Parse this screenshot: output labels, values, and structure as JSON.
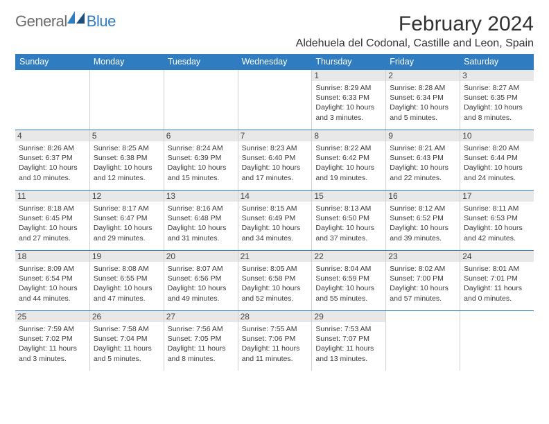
{
  "logo": {
    "general": "General",
    "blue": "Blue"
  },
  "title": "February 2024",
  "location": "Aldehuela del Codonal, Castille and Leon, Spain",
  "colors": {
    "header_bar": "#2f7dc0",
    "header_text": "#ffffff",
    "daynum_bg": "#e8e8e8",
    "text": "#3a3a3a",
    "rule": "#2f7dc0"
  },
  "weekdays": [
    "Sunday",
    "Monday",
    "Tuesday",
    "Wednesday",
    "Thursday",
    "Friday",
    "Saturday"
  ],
  "first_weekday_index": 4,
  "days": [
    {
      "n": 1,
      "sunrise": "8:29 AM",
      "sunset": "6:33 PM",
      "daylight": "10 hours and 3 minutes."
    },
    {
      "n": 2,
      "sunrise": "8:28 AM",
      "sunset": "6:34 PM",
      "daylight": "10 hours and 5 minutes."
    },
    {
      "n": 3,
      "sunrise": "8:27 AM",
      "sunset": "6:35 PM",
      "daylight": "10 hours and 8 minutes."
    },
    {
      "n": 4,
      "sunrise": "8:26 AM",
      "sunset": "6:37 PM",
      "daylight": "10 hours and 10 minutes."
    },
    {
      "n": 5,
      "sunrise": "8:25 AM",
      "sunset": "6:38 PM",
      "daylight": "10 hours and 12 minutes."
    },
    {
      "n": 6,
      "sunrise": "8:24 AM",
      "sunset": "6:39 PM",
      "daylight": "10 hours and 15 minutes."
    },
    {
      "n": 7,
      "sunrise": "8:23 AM",
      "sunset": "6:40 PM",
      "daylight": "10 hours and 17 minutes."
    },
    {
      "n": 8,
      "sunrise": "8:22 AM",
      "sunset": "6:42 PM",
      "daylight": "10 hours and 19 minutes."
    },
    {
      "n": 9,
      "sunrise": "8:21 AM",
      "sunset": "6:43 PM",
      "daylight": "10 hours and 22 minutes."
    },
    {
      "n": 10,
      "sunrise": "8:20 AM",
      "sunset": "6:44 PM",
      "daylight": "10 hours and 24 minutes."
    },
    {
      "n": 11,
      "sunrise": "8:18 AM",
      "sunset": "6:45 PM",
      "daylight": "10 hours and 27 minutes."
    },
    {
      "n": 12,
      "sunrise": "8:17 AM",
      "sunset": "6:47 PM",
      "daylight": "10 hours and 29 minutes."
    },
    {
      "n": 13,
      "sunrise": "8:16 AM",
      "sunset": "6:48 PM",
      "daylight": "10 hours and 31 minutes."
    },
    {
      "n": 14,
      "sunrise": "8:15 AM",
      "sunset": "6:49 PM",
      "daylight": "10 hours and 34 minutes."
    },
    {
      "n": 15,
      "sunrise": "8:13 AM",
      "sunset": "6:50 PM",
      "daylight": "10 hours and 37 minutes."
    },
    {
      "n": 16,
      "sunrise": "8:12 AM",
      "sunset": "6:52 PM",
      "daylight": "10 hours and 39 minutes."
    },
    {
      "n": 17,
      "sunrise": "8:11 AM",
      "sunset": "6:53 PM",
      "daylight": "10 hours and 42 minutes."
    },
    {
      "n": 18,
      "sunrise": "8:09 AM",
      "sunset": "6:54 PM",
      "daylight": "10 hours and 44 minutes."
    },
    {
      "n": 19,
      "sunrise": "8:08 AM",
      "sunset": "6:55 PM",
      "daylight": "10 hours and 47 minutes."
    },
    {
      "n": 20,
      "sunrise": "8:07 AM",
      "sunset": "6:56 PM",
      "daylight": "10 hours and 49 minutes."
    },
    {
      "n": 21,
      "sunrise": "8:05 AM",
      "sunset": "6:58 PM",
      "daylight": "10 hours and 52 minutes."
    },
    {
      "n": 22,
      "sunrise": "8:04 AM",
      "sunset": "6:59 PM",
      "daylight": "10 hours and 55 minutes."
    },
    {
      "n": 23,
      "sunrise": "8:02 AM",
      "sunset": "7:00 PM",
      "daylight": "10 hours and 57 minutes."
    },
    {
      "n": 24,
      "sunrise": "8:01 AM",
      "sunset": "7:01 PM",
      "daylight": "11 hours and 0 minutes."
    },
    {
      "n": 25,
      "sunrise": "7:59 AM",
      "sunset": "7:02 PM",
      "daylight": "11 hours and 3 minutes."
    },
    {
      "n": 26,
      "sunrise": "7:58 AM",
      "sunset": "7:04 PM",
      "daylight": "11 hours and 5 minutes."
    },
    {
      "n": 27,
      "sunrise": "7:56 AM",
      "sunset": "7:05 PM",
      "daylight": "11 hours and 8 minutes."
    },
    {
      "n": 28,
      "sunrise": "7:55 AM",
      "sunset": "7:06 PM",
      "daylight": "11 hours and 11 minutes."
    },
    {
      "n": 29,
      "sunrise": "7:53 AM",
      "sunset": "7:07 PM",
      "daylight": "11 hours and 13 minutes."
    }
  ],
  "labels": {
    "sunrise": "Sunrise: ",
    "sunset": "Sunset: ",
    "daylight": "Daylight: "
  }
}
